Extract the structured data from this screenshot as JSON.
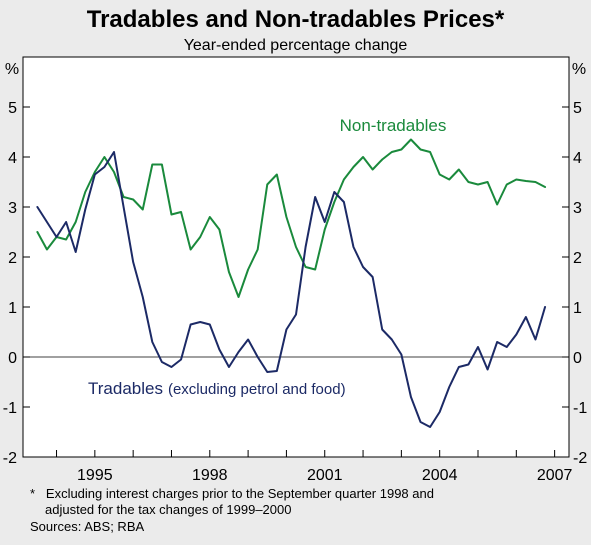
{
  "chart_data": {
    "type": "line",
    "title": "Tradables and Non-tradables Prices*",
    "subtitle": "Year-ended percentage change",
    "ylabel_left": "%",
    "ylabel_right": "%",
    "ylim": [
      -2,
      6
    ],
    "yticks": [
      -2,
      -1,
      0,
      1,
      2,
      3,
      4,
      5
    ],
    "xlim": [
      1993.625,
      2007.875
    ],
    "xticks": [
      {
        "value": 1995.5,
        "label": "1995"
      },
      {
        "value": 1998.5,
        "label": "1998"
      },
      {
        "value": 2001.5,
        "label": "2001"
      },
      {
        "value": 2004.5,
        "label": "2004"
      },
      {
        "value": 2007.5,
        "label": "2007"
      }
    ],
    "grid": "horizontal at zero only",
    "x": [
      1994.0,
      1994.25,
      1994.5,
      1994.75,
      1995.0,
      1995.25,
      1995.5,
      1995.75,
      1996.0,
      1996.25,
      1996.5,
      1996.75,
      1997.0,
      1997.25,
      1997.5,
      1997.75,
      1998.0,
      1998.25,
      1998.5,
      1998.75,
      1999.0,
      1999.25,
      1999.5,
      1999.75,
      2000.0,
      2000.25,
      2000.5,
      2000.75,
      2001.0,
      2001.25,
      2001.5,
      2001.75,
      2002.0,
      2002.25,
      2002.5,
      2002.75,
      2003.0,
      2003.25,
      2003.5,
      2003.75,
      2004.0,
      2004.25,
      2004.5,
      2004.75,
      2005.0,
      2005.25,
      2005.5,
      2005.75,
      2006.0,
      2006.25,
      2006.5,
      2006.75,
      2007.0,
      2007.25
    ],
    "series": [
      {
        "name": "Non-tradables",
        "color": "#1a8a3c",
        "values": [
          2.5,
          2.15,
          2.4,
          2.35,
          2.7,
          3.3,
          3.7,
          4.0,
          3.7,
          3.2,
          3.15,
          2.95,
          3.85,
          3.85,
          2.85,
          2.9,
          2.15,
          2.4,
          2.8,
          2.55,
          1.7,
          1.2,
          1.75,
          2.15,
          3.45,
          3.65,
          2.8,
          2.2,
          1.8,
          1.75,
          2.55,
          3.1,
          3.55,
          3.8,
          4.0,
          3.75,
          3.95,
          4.1,
          4.15,
          4.35,
          4.15,
          4.1,
          3.65,
          3.55,
          3.75,
          3.5,
          3.45,
          3.5,
          3.05,
          3.45,
          3.55,
          3.52,
          3.5,
          3.4
        ]
      },
      {
        "name": "Tradables",
        "name_suffix": "(excluding petrol and food)",
        "color": "#1c2a66",
        "values": [
          3.0,
          2.7,
          2.4,
          2.7,
          2.1,
          2.95,
          3.65,
          3.8,
          4.1,
          3.0,
          1.9,
          1.2,
          0.3,
          -0.1,
          -0.2,
          -0.05,
          0.65,
          0.7,
          0.65,
          0.15,
          -0.2,
          0.1,
          0.35,
          0.0,
          -0.3,
          -0.28,
          0.55,
          0.85,
          2.2,
          3.2,
          2.7,
          3.3,
          3.1,
          2.2,
          1.8,
          1.6,
          0.55,
          0.35,
          0.05,
          -0.8,
          -1.3,
          -1.4,
          -1.1,
          -0.6,
          -0.2,
          -0.15,
          0.2,
          -0.25,
          0.3,
          0.2,
          0.45,
          0.8,
          0.35,
          1.0
        ]
      }
    ]
  },
  "footnote_line1": "*   Excluding interest charges prior to the September quarter 1998 and",
  "footnote_line2": "adjusted for the tax changes of 1999–2000",
  "sources": "Sources: ABS; RBA"
}
